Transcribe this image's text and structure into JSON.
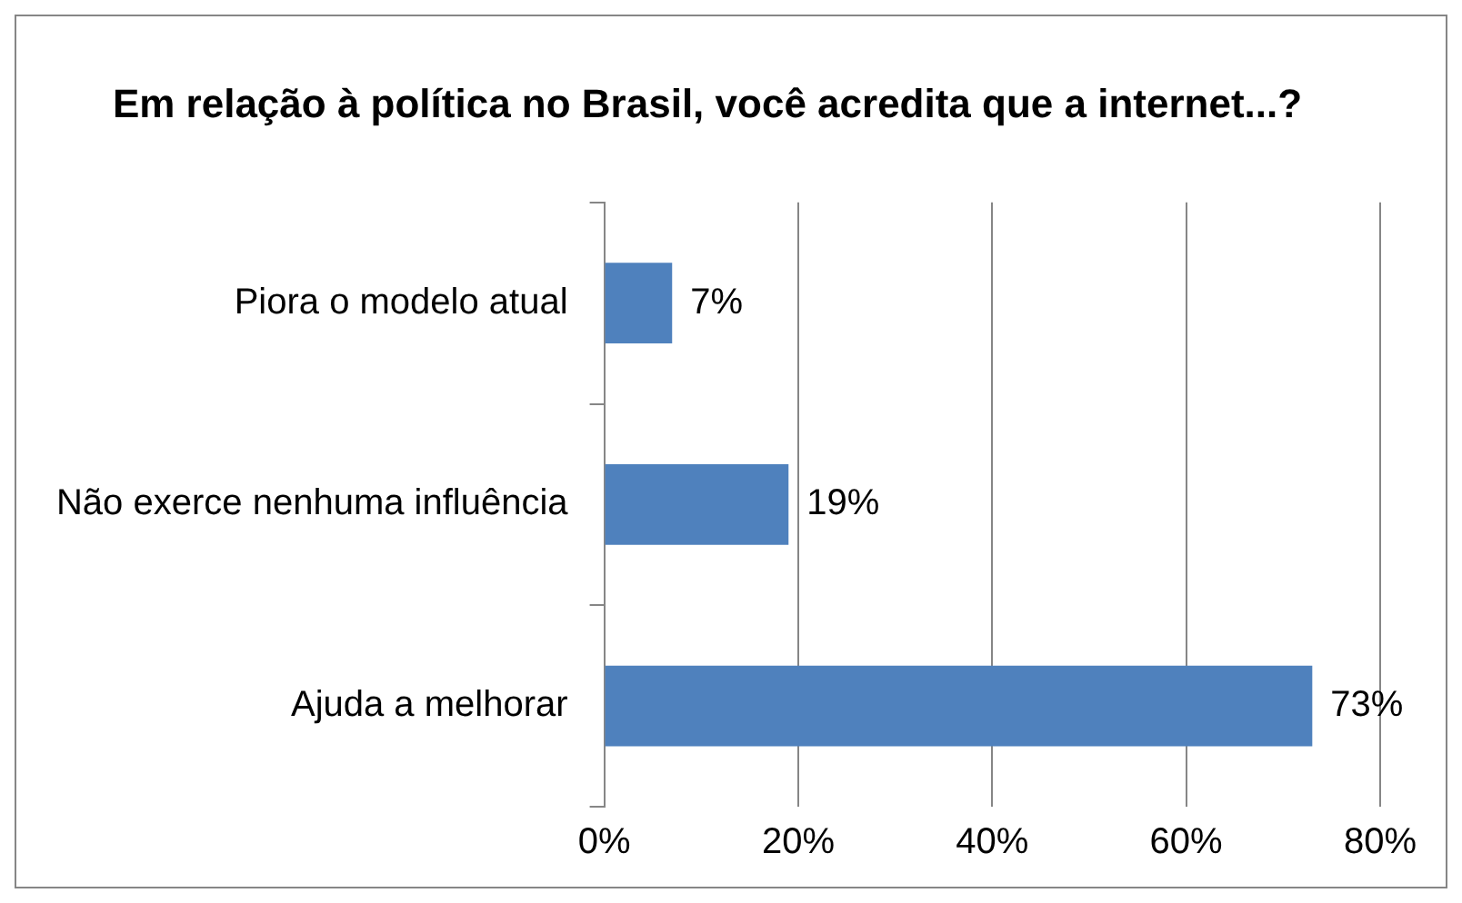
{
  "chart_data": {
    "type": "bar",
    "orientation": "horizontal",
    "title": "Em relação à política no Brasil, você acredita que a internet...?",
    "categories": [
      "Piora o modelo atual",
      "Não exerce nenhuma influência",
      "Ajuda a melhorar"
    ],
    "values": [
      7,
      19,
      73
    ],
    "color": "#4f81bd",
    "value_labels": [
      "7%",
      "19%",
      "73%"
    ],
    "xlim": [
      0,
      80
    ],
    "xticks": [
      {
        "value": 0,
        "label": "0%"
      },
      {
        "value": 20,
        "label": "20%"
      },
      {
        "value": 40,
        "label": "40%"
      },
      {
        "value": 60,
        "label": "60%"
      },
      {
        "value": 80,
        "label": "80%"
      }
    ],
    "grid": "x",
    "legend": false
  }
}
